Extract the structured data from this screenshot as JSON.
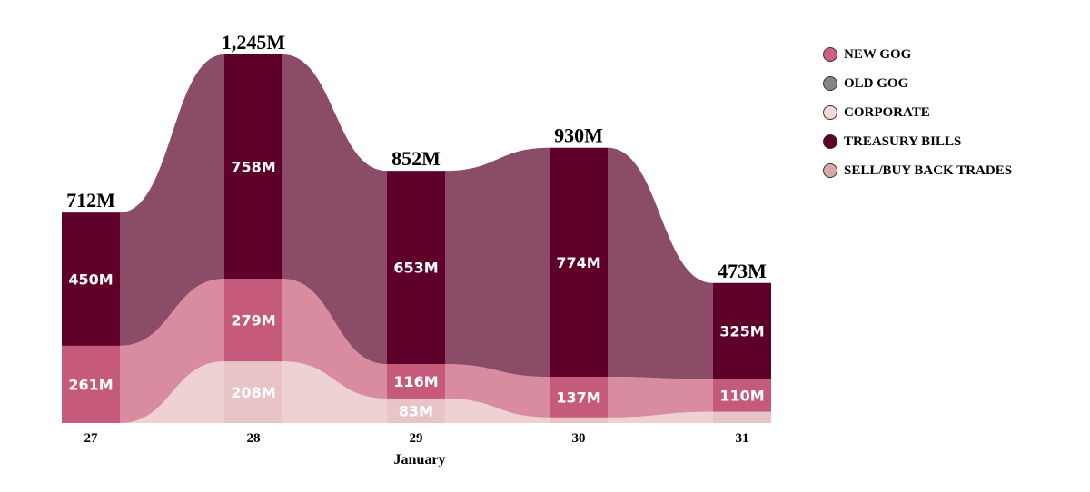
{
  "chart_data": {
    "type": "area",
    "xlabel": "January",
    "ylabel": "",
    "categories": [
      "27",
      "28",
      "29",
      "30",
      "31"
    ],
    "totals": [
      712,
      1245,
      852,
      930,
      473
    ],
    "total_labels": [
      "712M",
      "1,245M",
      "852M",
      "930M",
      "473M"
    ],
    "ylim": [
      0,
      1245
    ],
    "legend_position": "top-right",
    "series": [
      {
        "name": "SELL/BUY BACK TRADES",
        "values": [
          0,
          0,
          0,
          0,
          0
        ],
        "labels": [
          "",
          "",
          "",
          "",
          ""
        ],
        "color": "#dba7aa"
      },
      {
        "name": "CORPORATE",
        "values": [
          0,
          208,
          83,
          19,
          38
        ],
        "labels": [
          "",
          "208M",
          "83M",
          "",
          ""
        ],
        "color": "#e8c4c6"
      },
      {
        "name": "NEW GOG",
        "values": [
          261,
          279,
          116,
          137,
          110
        ],
        "labels": [
          "261M",
          "279M",
          "116M",
          "137M",
          "110M"
        ],
        "color": "#c65a7b"
      },
      {
        "name": "TREASURY BILLS",
        "values": [
          450,
          758,
          653,
          774,
          325
        ],
        "labels": [
          "450M",
          "758M",
          "653M",
          "774M",
          "325M"
        ],
        "color": "#5e0029"
      },
      {
        "name": "OLD GOG",
        "values": [
          1,
          0,
          0,
          0,
          0
        ],
        "labels": [
          "",
          "",
          "",
          "",
          ""
        ],
        "color": "#8a8a8a"
      }
    ]
  },
  "legend": {
    "items": [
      {
        "name": "NEW GOG",
        "color": "#cf5f82"
      },
      {
        "name": "OLD GOG",
        "color": "#858585"
      },
      {
        "name": "CORPORATE",
        "color": "#f3d9d4"
      },
      {
        "name": "TREASURY BILLS",
        "color": "#5e0029"
      },
      {
        "name": "SELL/BUY BACK TRADES",
        "color": "#dba7aa"
      }
    ]
  }
}
